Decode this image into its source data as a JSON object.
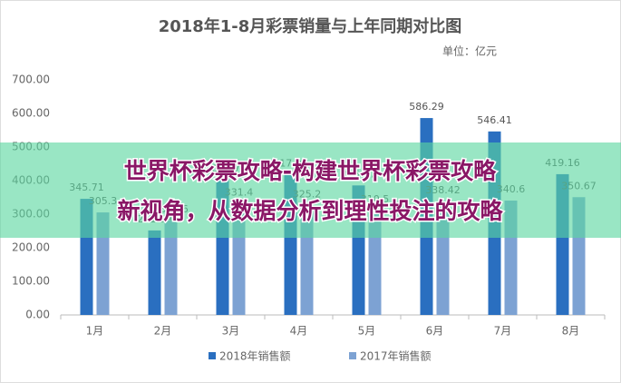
{
  "chart_data": {
    "type": "bar",
    "title": "2018年1-8月彩票销量与上年同期对比图",
    "subtitle": "单位：亿元",
    "categories": [
      "1月",
      "2月",
      "3月",
      "4月",
      "5月",
      "6月",
      "7月",
      "8月"
    ],
    "series": [
      {
        "name": "2018年销售额",
        "color": "#2a6fc0",
        "values": [
          345.71,
          251.59,
          401.87,
          417.05,
          385.67,
          586.29,
          546.41,
          419.16
        ]
      },
      {
        "name": "2017年销售额",
        "color": "#7da2d3",
        "values": [
          305.3,
          281.16,
          331.4,
          325.2,
          310.5,
          338.42,
          340.6,
          350.67
        ]
      }
    ],
    "ylim": [
      0,
      700
    ],
    "yticks": [
      {
        "value": 0,
        "label": "0.00"
      },
      {
        "value": 100,
        "label": "100.00"
      },
      {
        "value": 200,
        "label": "200.00"
      },
      {
        "value": 300,
        "label": "300.00"
      },
      {
        "value": 400,
        "label": "400.00"
      },
      {
        "value": 500,
        "label": "500.00"
      },
      {
        "value": 600,
        "label": "600.00"
      },
      {
        "value": 700,
        "label": "700.00"
      }
    ],
    "grid": false,
    "legend": "bottom",
    "overlay_text": [
      "世界杯彩票攻略-构建世界杯彩票攻略",
      "新视角，从数据分析到理性投注的攻略"
    ]
  }
}
